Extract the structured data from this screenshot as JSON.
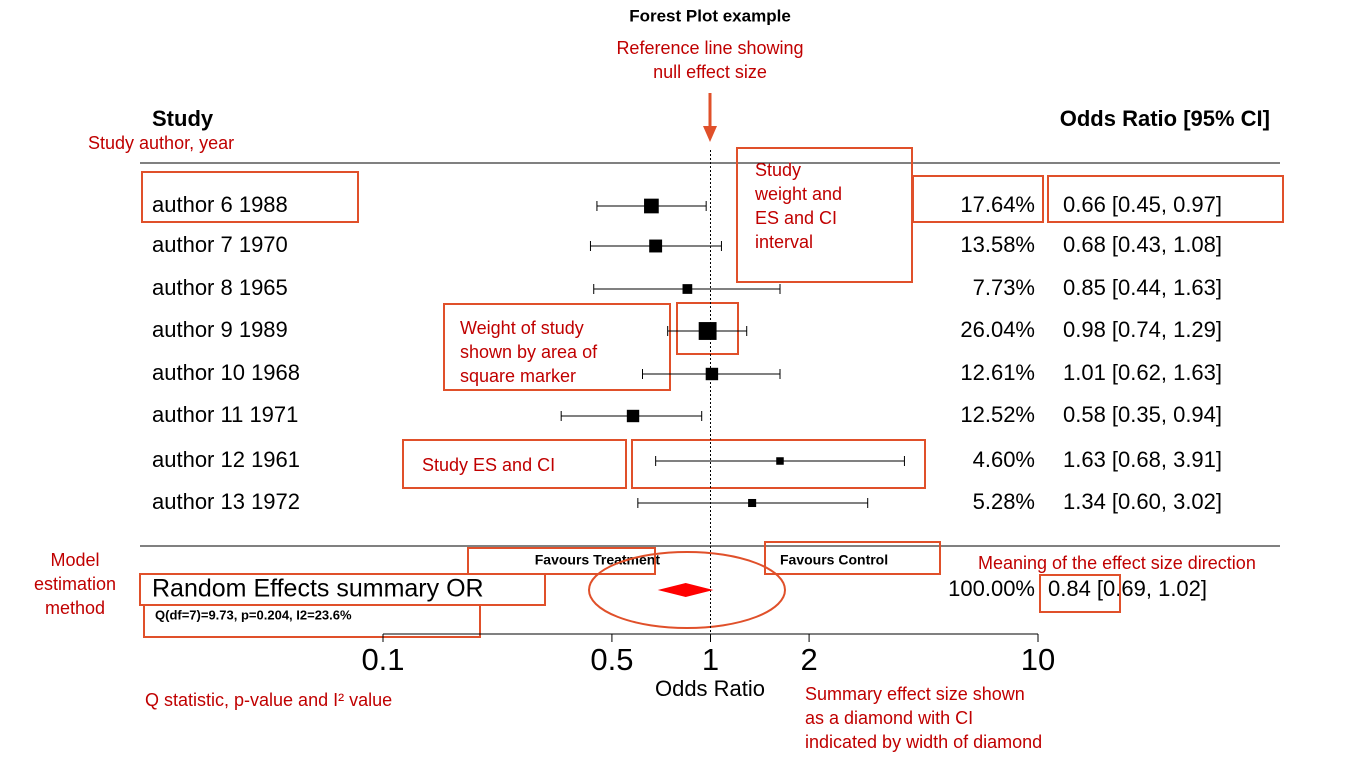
{
  "chart_data": {
    "type": "forest",
    "title": "Forest Plot example",
    "x_label": "Odds Ratio",
    "study_header": "Study",
    "estimate_header": "Odds Ratio [95% CI]",
    "xscale": "log",
    "xlim": [
      0.1,
      10
    ],
    "xticks": [
      0.1,
      0.5,
      1,
      2,
      10
    ],
    "reference": 1,
    "color": "#000000",
    "summary_color": "#ff0000",
    "studies": [
      "author 6  1988",
      "author 7  1970",
      "author 8  1965",
      "author 9  1989",
      "author 10  1968",
      "author 11  1971",
      "author 12  1961",
      "author 13  1972"
    ],
    "values": [
      0.66,
      0.68,
      0.85,
      0.98,
      1.01,
      0.58,
      1.63,
      1.34
    ],
    "lower": [
      0.45,
      0.43,
      0.44,
      0.74,
      0.62,
      0.35,
      0.68,
      0.6
    ],
    "upper": [
      0.97,
      1.08,
      1.63,
      1.29,
      1.63,
      0.94,
      3.91,
      3.02
    ],
    "weights": [
      17.64,
      13.58,
      7.73,
      26.04,
      12.61,
      12.52,
      4.6,
      5.28
    ],
    "weight_labels": [
      "17.64%",
      "13.58%",
      "7.73%",
      "26.04%",
      "12.61%",
      "12.52%",
      "4.60%",
      "5.28%"
    ],
    "value_labels": [
      "0.66 [0.45, 0.97]",
      "0.68 [0.43, 1.08]",
      "0.85 [0.44, 1.63]",
      "0.98 [0.74, 1.29]",
      "1.01 [0.62, 1.63]",
      "0.58 [0.35, 0.94]",
      "1.63 [0.68, 3.91]",
      "1.34 [0.60, 3.02]"
    ],
    "summary": {
      "name": "Random Effects summary OR",
      "value": 0.84,
      "lower": 0.69,
      "upper": 1.02,
      "weight": 100.0,
      "weight_label": "100.00%",
      "value_label": "0.84 [0.69, 1.02]",
      "heterogeneity": "Q(df=7)=9.73, p=0.204, I2=23.6%"
    },
    "favours": [
      "Favours Treatment",
      "Favours Control"
    ]
  },
  "annotations": [
    {
      "lines": [
        "Reference line showing",
        "null effect size"
      ]
    },
    {
      "lines": [
        "Study author, year"
      ]
    },
    {
      "lines": [
        "Study",
        "weight and",
        "ES and CI",
        "interval"
      ]
    },
    {
      "lines": [
        "Weight of study",
        "shown by area of",
        "square marker"
      ]
    },
    {
      "lines": [
        "Study ES and CI"
      ]
    },
    {
      "lines": [
        "Model",
        "estimation",
        "method"
      ]
    },
    {
      "lines": [
        "Meaning of the effect size direction"
      ]
    },
    {
      "lines": [
        "Q statistic, p-value and I² value"
      ]
    },
    {
      "lines": [
        "Summary effect size shown",
        "as a diamond with CI",
        "indicated by width of diamond"
      ]
    }
  ]
}
